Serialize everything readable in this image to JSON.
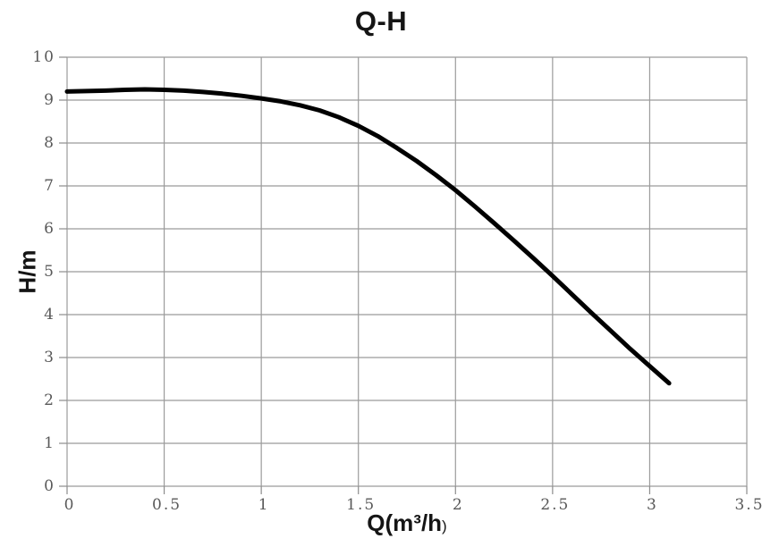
{
  "labels": {
    "title": "Q-H",
    "ylabel": "H/m",
    "xlabel_main": "Q(m³/h",
    "xlabel_paren": ")"
  },
  "style": {
    "grid_color": "#9b9b9b",
    "axis_color": "#8c8c8c",
    "tick_color": "#8c8c8c",
    "tick_label_color": "#595959",
    "curve_color": "#000000",
    "background_color": "#ffffff"
  },
  "chart_data": {
    "type": "line",
    "title": "Q-H",
    "xlabel": "Q(m³/h)",
    "ylabel": "H/m",
    "xlim": [
      0,
      3.5
    ],
    "ylim": [
      0,
      10
    ],
    "xticks": [
      0,
      0.5,
      1,
      1.5,
      2,
      2.5,
      3,
      3.5
    ],
    "xtick_labels": [
      "0",
      "0.5",
      "1",
      "1.5",
      "2",
      "2.5",
      "3",
      "3.5"
    ],
    "yticks": [
      0,
      1,
      2,
      3,
      4,
      5,
      6,
      7,
      8,
      9,
      10
    ],
    "ytick_labels": [
      "0",
      "1",
      "2",
      "3",
      "4",
      "5",
      "6",
      "7",
      "8",
      "9",
      "10"
    ],
    "grid": true,
    "legend": false,
    "series": [
      {
        "name": "Q-H",
        "color": "#000000",
        "line_width": 5,
        "points": [
          [
            0.0,
            9.2
          ],
          [
            0.1,
            9.21
          ],
          [
            0.2,
            9.22
          ],
          [
            0.3,
            9.24
          ],
          [
            0.4,
            9.25
          ],
          [
            0.5,
            9.24
          ],
          [
            0.6,
            9.22
          ],
          [
            0.7,
            9.19
          ],
          [
            0.8,
            9.15
          ],
          [
            0.9,
            9.1
          ],
          [
            1.0,
            9.04
          ],
          [
            1.1,
            8.97
          ],
          [
            1.2,
            8.88
          ],
          [
            1.3,
            8.76
          ],
          [
            1.4,
            8.6
          ],
          [
            1.5,
            8.4
          ],
          [
            1.6,
            8.16
          ],
          [
            1.7,
            7.88
          ],
          [
            1.8,
            7.58
          ],
          [
            1.9,
            7.25
          ],
          [
            2.0,
            6.9
          ],
          [
            2.1,
            6.52
          ],
          [
            2.2,
            6.13
          ],
          [
            2.3,
            5.73
          ],
          [
            2.4,
            5.32
          ],
          [
            2.5,
            4.9
          ],
          [
            2.6,
            4.47
          ],
          [
            2.7,
            4.04
          ],
          [
            2.8,
            3.62
          ],
          [
            2.9,
            3.2
          ],
          [
            3.0,
            2.8
          ],
          [
            3.1,
            2.4
          ]
        ]
      }
    ]
  }
}
